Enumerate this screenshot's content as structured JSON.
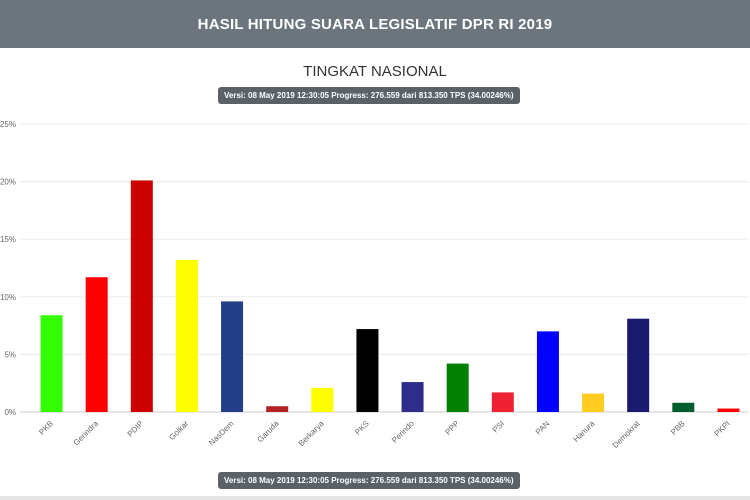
{
  "header": {
    "title": "HASIL HITUNG SUARA LEGISLATIF DPR RI 2019"
  },
  "chart_data": {
    "type": "bar",
    "title": "TINGKAT NASIONAL",
    "version_note": "Versi: 08 May 2019 12:30:05 Progress: 276.559 dari 813.350 TPS (34.00246%)",
    "categories": [
      "PKB",
      "Gerindra",
      "PDIP",
      "Golkar",
      "NasDem",
      "Garuda",
      "Berkarya",
      "PKS",
      "Perindo",
      "PPP",
      "PSI",
      "PAN",
      "Hanura",
      "Demokrat",
      "PBB",
      "PKPI"
    ],
    "values": [
      8.4,
      11.7,
      20.1,
      13.2,
      9.6,
      0.5,
      2.1,
      7.2,
      2.6,
      4.2,
      1.7,
      7.0,
      1.6,
      8.1,
      0.8,
      0.3
    ],
    "colors": [
      "#33ff00",
      "#ff0000",
      "#cc0000",
      "#ffff00",
      "#233f8a",
      "#b22222",
      "#ffff00",
      "#000000",
      "#2e2e8a",
      "#008000",
      "#ee2233",
      "#0000ff",
      "#ffcc22",
      "#1a1a6e",
      "#005e2e",
      "#ff0000"
    ],
    "ylim": [
      0,
      25
    ],
    "yticks": [
      0,
      5,
      10,
      15,
      20,
      25
    ],
    "ytick_labels": [
      "0%",
      "5%",
      "10%",
      "15%",
      "20%",
      "25%"
    ],
    "xlabel": "",
    "ylabel": "",
    "grid": true,
    "legend": "none"
  }
}
